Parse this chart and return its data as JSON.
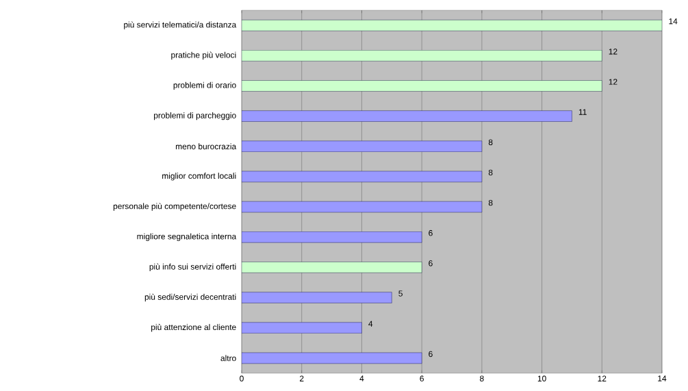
{
  "chart_data": {
    "type": "bar",
    "orientation": "horizontal",
    "categories": [
      "più servizi telematici/a distanza",
      "pratiche più veloci",
      "problemi di orario",
      "problemi di parcheggio",
      "meno burocrazia",
      "miglior comfort locali",
      "personale più competente/cortese",
      "migliore segnaletica interna",
      "più info sui servizi offerti",
      "più sedi/servizi decentrati",
      "più attenzione al cliente",
      "altro"
    ],
    "values": [
      14,
      12,
      12,
      11,
      8,
      8,
      8,
      6,
      6,
      5,
      4,
      6
    ],
    "colors": [
      "#ccffcc",
      "#ccffcc",
      "#ccffcc",
      "#9999ff",
      "#9999ff",
      "#9999ff",
      "#9999ff",
      "#9999ff",
      "#ccffcc",
      "#9999ff",
      "#9999ff",
      "#9999ff"
    ],
    "xlim": [
      0,
      14
    ],
    "xticks": [
      0,
      2,
      4,
      6,
      8,
      10,
      12,
      14
    ],
    "grid": "x",
    "data_labels": true
  }
}
